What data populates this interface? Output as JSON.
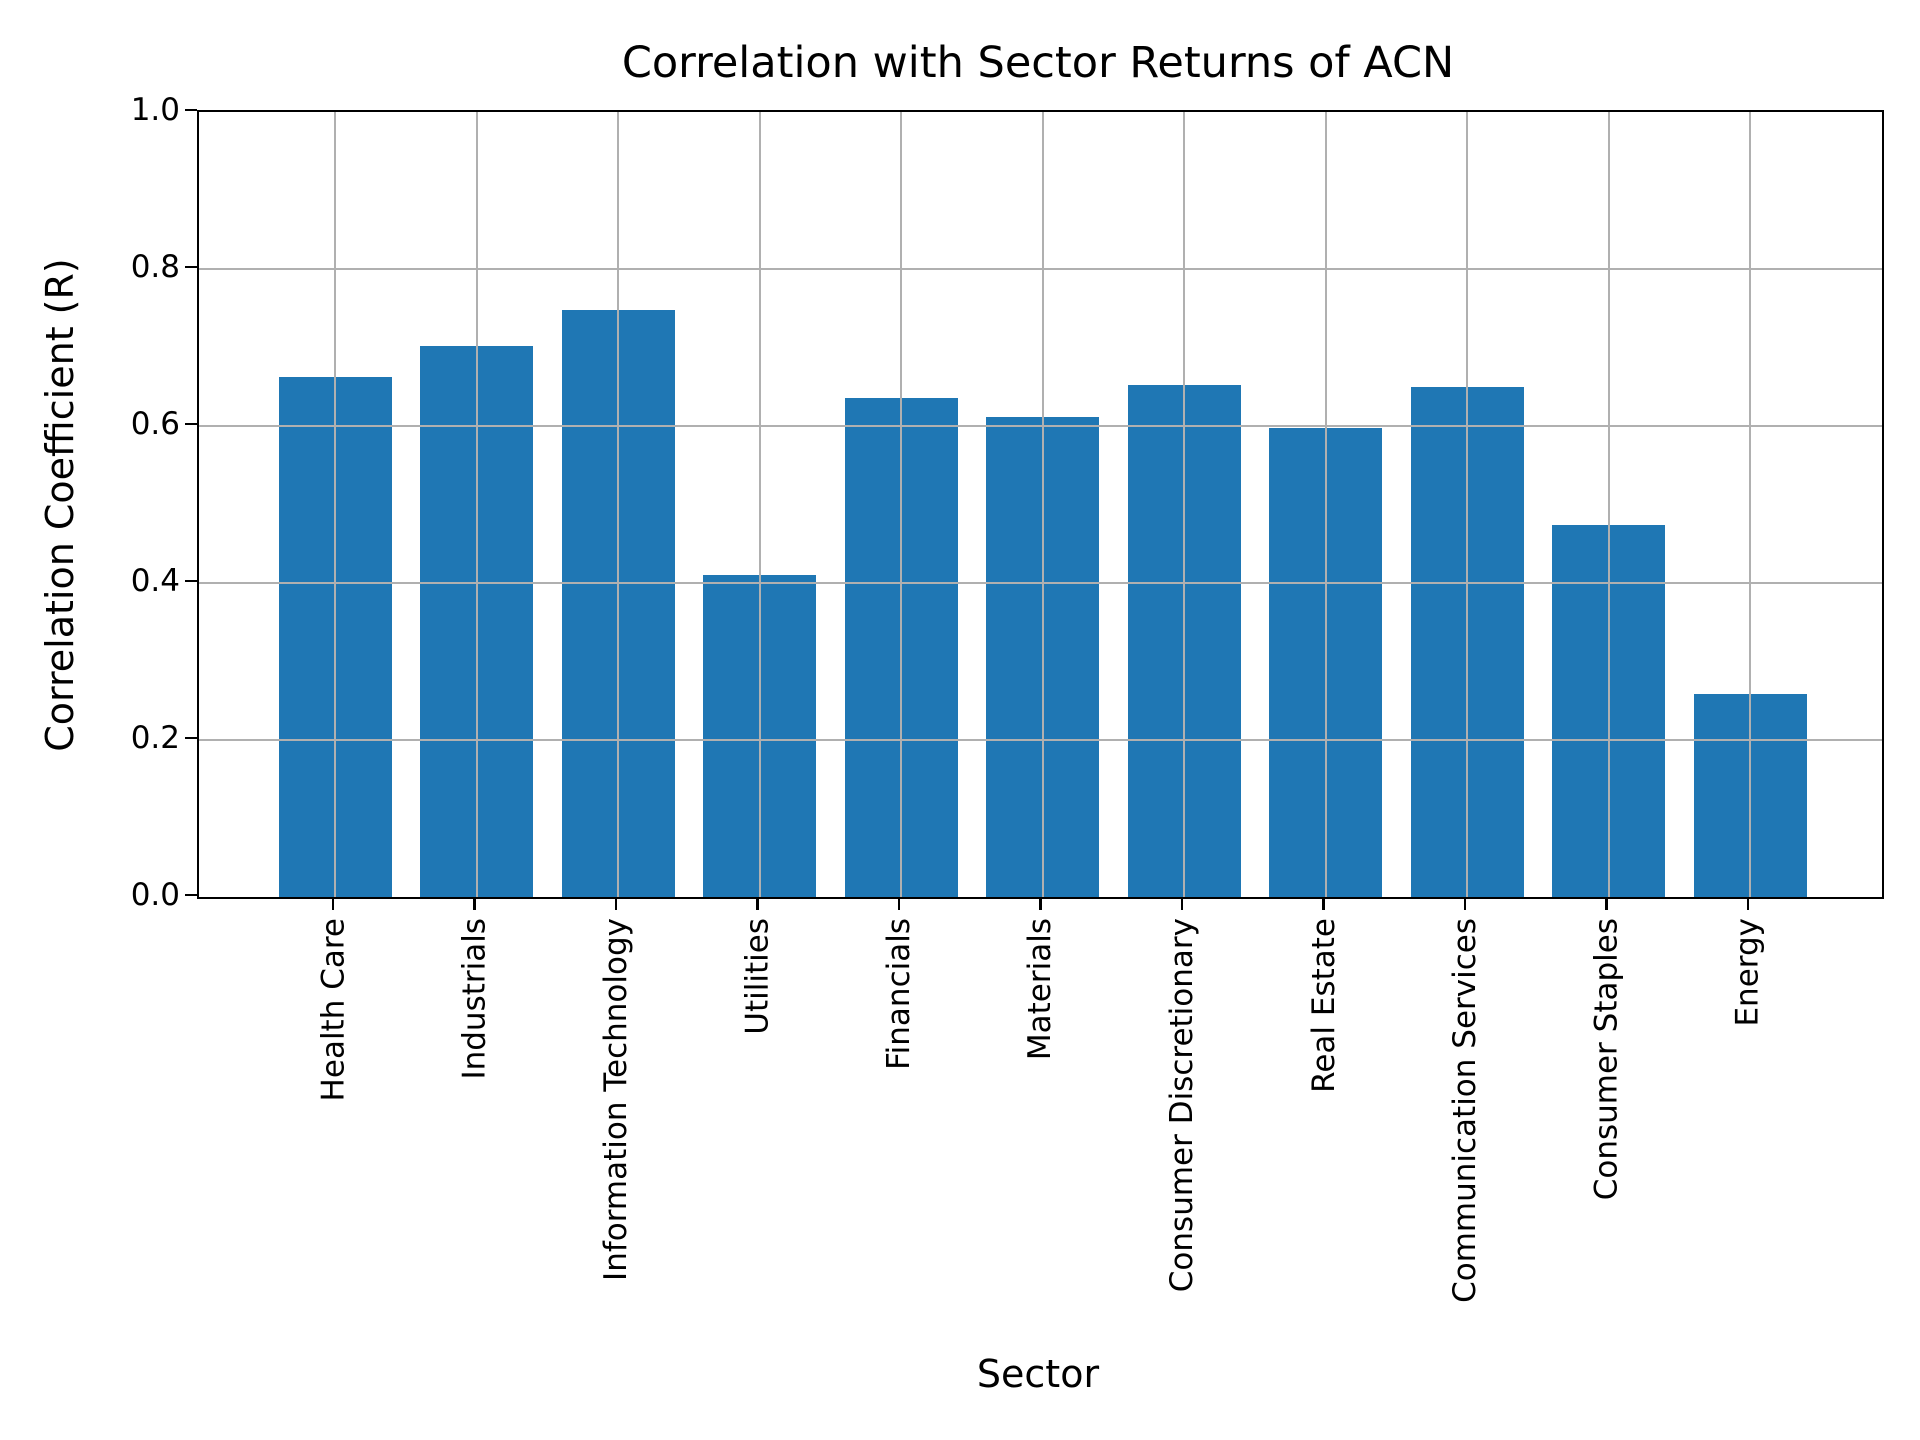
{
  "chart_data": {
    "type": "bar",
    "title": "Correlation with Sector Returns of ACN",
    "xlabel": "Sector",
    "ylabel": "Correlation Coefficient (R)",
    "categories": [
      "Health Care",
      "Industrials",
      "Information Technology",
      "Utilities",
      "Financials",
      "Materials",
      "Consumer Discretionary",
      "Real Estate",
      "Communication Services",
      "Consumer Staples",
      "Energy"
    ],
    "values": [
      0.662,
      0.702,
      0.748,
      0.41,
      0.636,
      0.612,
      0.652,
      0.598,
      0.65,
      0.474,
      0.258
    ],
    "ylim": [
      0.0,
      1.0
    ],
    "yticks": [
      0.0,
      0.2,
      0.4,
      0.6,
      0.8,
      1.0
    ],
    "grid": true,
    "grid_over_bars": true,
    "legend": "none",
    "bar_color": "#1f77b4",
    "grid_color": "#b0b0b0",
    "spine_color": "#000000",
    "text_color": "#000000"
  }
}
